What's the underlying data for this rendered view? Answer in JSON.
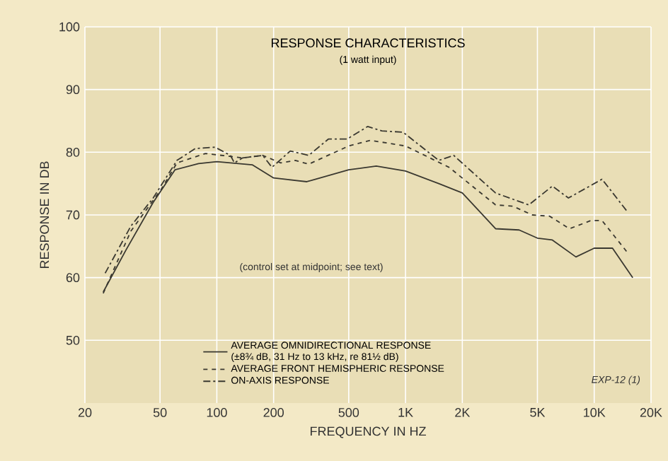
{
  "chart_data": {
    "type": "line",
    "title": "RESPONSE CHARACTERISTICS",
    "subtitle": "(1 watt input)",
    "xlabel": "FREQUENCY IN HZ",
    "ylabel": "RESPONSE IN DB",
    "annotations": [
      "(control set at midpoint; see text)",
      "(±8¾ dB, 31 Hz to 13 kHz, re 81½ dB)",
      "EXP-12 (1)"
    ],
    "log": "x",
    "grid": true,
    "legend": "bottom",
    "xlim": [
      20,
      20000
    ],
    "ylim": [
      40,
      100
    ],
    "xticks": [
      20,
      50,
      100,
      200,
      500,
      {
        "value": 1000,
        "label": "1K"
      },
      {
        "value": 2000,
        "label": "2K"
      },
      {
        "value": 5000,
        "label": "5K"
      },
      {
        "value": 10000,
        "label": "10K"
      },
      {
        "value": 20000,
        "label": "20K"
      }
    ],
    "yticks": [
      50,
      60,
      70,
      80,
      90,
      100
    ],
    "series": [
      {
        "name": "AVERAGE OMNIDIRECTIONAL RESPONSE",
        "color": "#3a3830",
        "line_style": "solid",
        "x": [
          25,
          33,
          46,
          60,
          80,
          100,
          154,
          200,
          300,
          500,
          700,
          1000,
          1500,
          2000,
          3000,
          4000,
          5000,
          6000,
          8000,
          10000,
          12500,
          16000
        ],
        "values": [
          57.7,
          64.4,
          72,
          77.2,
          78.2,
          78.5,
          78,
          75.9,
          75.3,
          77.2,
          77.8,
          77,
          75,
          73.5,
          67.8,
          67.6,
          66.3,
          66,
          63.3,
          64.7,
          64.7,
          60
        ]
      },
      {
        "name": "AVERAGE FRONT HEMISPHERIC RESPONSE",
        "color": "#3a3830",
        "line_style": "dashed",
        "x": [
          25,
          35,
          51,
          61.5,
          87,
          106,
          137,
          175,
          218,
          260,
          307,
          500,
          650,
          1000,
          1700,
          3000,
          3700,
          4700,
          5800,
          7400,
          9600,
          11000,
          15000
        ],
        "values": [
          57.5,
          67.4,
          74.2,
          78.3,
          79.8,
          79.5,
          79.1,
          79.5,
          78.3,
          78.7,
          78.1,
          81,
          81.9,
          81,
          77.6,
          71.6,
          71.4,
          70,
          69.8,
          67.8,
          69.1,
          69.1,
          64
        ]
      },
      {
        "name": "ON-AXIS RESPONSE",
        "color": "#3a3830",
        "line_style": "dashdot",
        "x": [
          25.6,
          35,
          46,
          61.5,
          77,
          98,
          118,
          124,
          137,
          175,
          196,
          245,
          307,
          390,
          490,
          630,
          750,
          970,
          1500,
          1800,
          3000,
          4500,
          6000,
          7300,
          11000,
          15000
        ],
        "values": [
          60.7,
          68.2,
          72.7,
          78.7,
          80.6,
          80.8,
          79.5,
          78.3,
          79.1,
          79.5,
          77.6,
          80.2,
          79.5,
          82.1,
          82.1,
          84.1,
          83.4,
          83.2,
          78.7,
          79.5,
          73.5,
          71.6,
          74.6,
          72.7,
          75.7,
          70.5
        ]
      }
    ]
  }
}
